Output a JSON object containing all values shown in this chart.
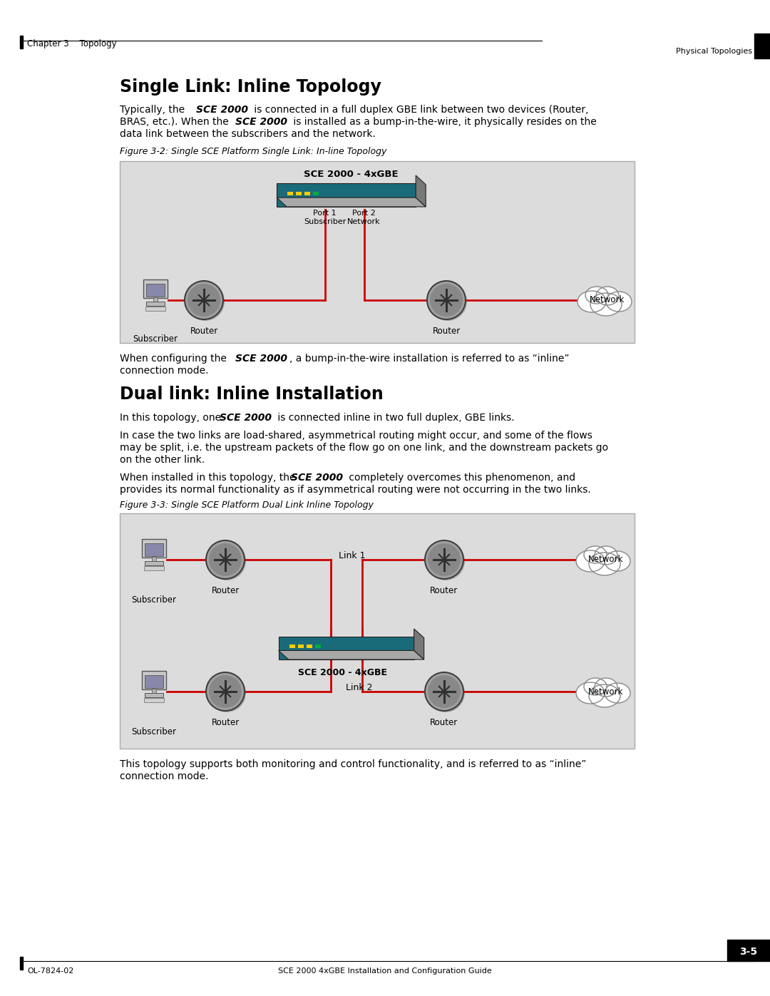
{
  "page_bg": "#ffffff",
  "header_text": "Chapter 3    Topology",
  "header_right": "Physical Topologies",
  "footer_left": "OL-7824-02",
  "footer_right": "3-5",
  "footer_center": "SCE 2000 4xGBE Installation and Configuration Guide",
  "section1_title": "Single Link: Inline Topology",
  "fig1_caption": "Figure 3-2: Single SCE Platform Single Link: In-line Topology",
  "fig1_sce_label": "SCE 2000 - 4xGBE",
  "fig1_port1": "Port 1\nSubscriber",
  "fig1_port2": "Port 2\nNetwork",
  "fig1_subscriber": "Subscriber",
  "fig1_router1": "Router",
  "fig1_router2": "Router",
  "section2_title": "Dual link: Inline Installation",
  "fig2_caption": "Figure 3-3: Single SCE Platform Dual Link Inline Topology",
  "fig2_link1": "Link 1",
  "fig2_link2": "Link 2",
  "fig2_sce_label": "SCE 2000 - 4xGBE",
  "fig2_subscriber1": "Subscriber",
  "fig2_subscriber2": "Subscriber",
  "fig2_router_tl": "Router",
  "fig2_router_tr": "Router",
  "fig2_router_bl": "Router",
  "fig2_router_br": "Router",
  "diagram_bg": "#dcdcdc",
  "line_color": "#cc0000",
  "sce_body_color": "#1a6b7a",
  "sce_top_color": "#a8a8a8",
  "sce_side_color": "#787878",
  "router_fill": "#909090",
  "router_edge": "#404040",
  "cloud_fill": "#ffffff",
  "cloud_edge": "#888888"
}
